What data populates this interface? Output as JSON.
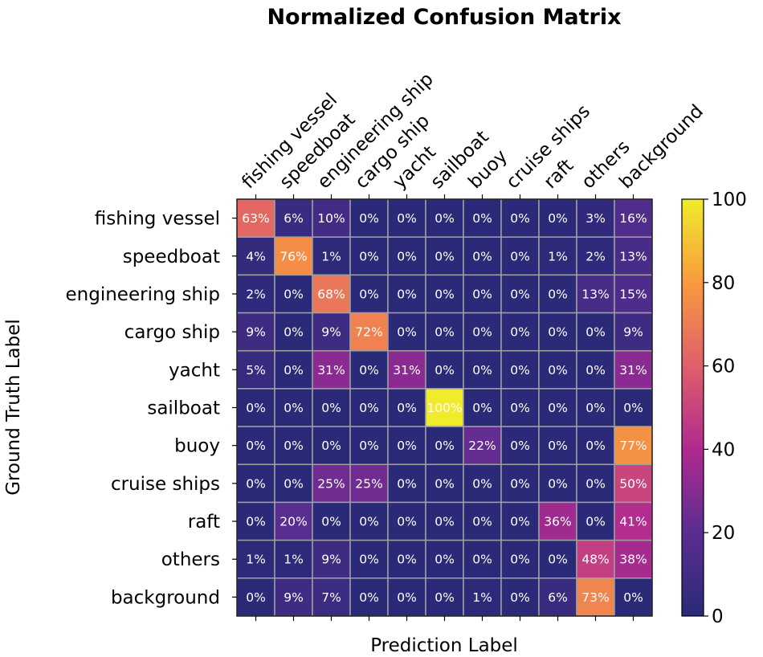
{
  "chart_data": {
    "type": "heatmap",
    "title": "Normalized Confusion Matrix",
    "xlabel": "Prediction Label",
    "ylabel": "Ground Truth Label",
    "x_categories": [
      "fishing vessel",
      "speedboat",
      "engineering ship",
      "cargo ship",
      "yacht",
      "sailboat",
      "buoy",
      "cruise ships",
      "raft",
      "others",
      "background"
    ],
    "y_categories": [
      "fishing vessel",
      "speedboat",
      "engineering ship",
      "cargo ship",
      "yacht",
      "sailboat",
      "buoy",
      "cruise ships",
      "raft",
      "others",
      "background"
    ],
    "values": [
      [
        63,
        6,
        10,
        0,
        0,
        0,
        0,
        0,
        0,
        3,
        16
      ],
      [
        4,
        76,
        1,
        0,
        0,
        0,
        0,
        0,
        1,
        2,
        13
      ],
      [
        2,
        0,
        68,
        0,
        0,
        0,
        0,
        0,
        0,
        13,
        15
      ],
      [
        9,
        0,
        9,
        72,
        0,
        0,
        0,
        0,
        0,
        0,
        9
      ],
      [
        5,
        0,
        31,
        0,
        31,
        0,
        0,
        0,
        0,
        0,
        31
      ],
      [
        0,
        0,
        0,
        0,
        0,
        100,
        0,
        0,
        0,
        0,
        0
      ],
      [
        0,
        0,
        0,
        0,
        0,
        0,
        22,
        0,
        0,
        0,
        77
      ],
      [
        0,
        0,
        25,
        25,
        0,
        0,
        0,
        0,
        0,
        0,
        50
      ],
      [
        0,
        20,
        0,
        0,
        0,
        0,
        0,
        0,
        36,
        0,
        41
      ],
      [
        1,
        1,
        9,
        0,
        0,
        0,
        0,
        0,
        0,
        48,
        38
      ],
      [
        0,
        9,
        7,
        0,
        0,
        0,
        1,
        0,
        6,
        73,
        0
      ]
    ],
    "value_suffix": "%",
    "colormap": "plasma",
    "colorbar": {
      "range": [
        0,
        100
      ],
      "ticks": [
        "0",
        "20",
        "40",
        "60",
        "80",
        "100"
      ]
    },
    "x_tick_position": "top",
    "cell_edge_color": "#a0a0a0"
  }
}
